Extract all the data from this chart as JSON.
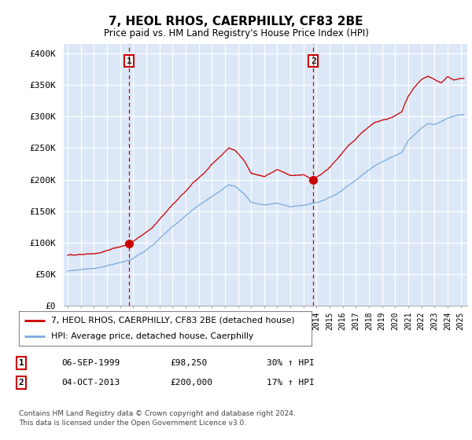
{
  "title": "7, HEOL RHOS, CAERPHILLY, CF83 2BE",
  "subtitle": "Price paid vs. HM Land Registry's House Price Index (HPI)",
  "ylabel_ticks": [
    "£0",
    "£50K",
    "£100K",
    "£150K",
    "£200K",
    "£250K",
    "£300K",
    "£350K",
    "£400K"
  ],
  "ytick_values": [
    0,
    50000,
    100000,
    150000,
    200000,
    250000,
    300000,
    350000,
    400000
  ],
  "ylim": [
    0,
    415000
  ],
  "xlim_start": 1994.7,
  "xlim_end": 2025.5,
  "line1_color": "#cc0000",
  "line2_color": "#7aaadd",
  "marker1_date": 1999.68,
  "marker1_value": 98250,
  "marker2_date": 2013.75,
  "marker2_value": 200000,
  "vline1_x": 1999.68,
  "vline2_x": 2013.75,
  "legend_line1": "7, HEOL RHOS, CAERPHILLY, CF83 2BE (detached house)",
  "legend_line2": "HPI: Average price, detached house, Caerphilly",
  "table_row1_num": "1",
  "table_row1_date": "06-SEP-1999",
  "table_row1_price": "£98,250",
  "table_row1_hpi": "30% ↑ HPI",
  "table_row2_num": "2",
  "table_row2_date": "04-OCT-2013",
  "table_row2_price": "£200,000",
  "table_row2_hpi": "17% ↑ HPI",
  "footnote1": "Contains HM Land Registry data © Crown copyright and database right 2024.",
  "footnote2": "This data is licensed under the Open Government Licence v3.0.",
  "fig_bg_color": "#ffffff",
  "plot_bg_color": "#dce8f8"
}
